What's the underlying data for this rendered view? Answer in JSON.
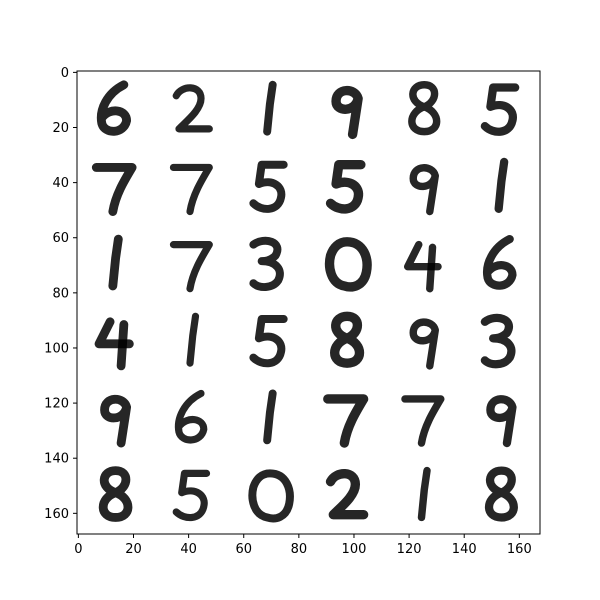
{
  "chart_data": {
    "type": "heatmap",
    "title": "",
    "xlabel": "",
    "ylabel": "",
    "xlim": [
      -0.5,
      167.5
    ],
    "ylim": [
      167.5,
      -0.5
    ],
    "xticks": [
      0,
      20,
      40,
      60,
      80,
      100,
      120,
      140,
      160
    ],
    "yticks": [
      0,
      20,
      40,
      60,
      80,
      100,
      120,
      140,
      160
    ],
    "xtick_labels": [
      "0",
      "20",
      "40",
      "60",
      "80",
      "100",
      "120",
      "140",
      "160"
    ],
    "ytick_labels": [
      "0",
      "20",
      "40",
      "60",
      "80",
      "100",
      "120",
      "140",
      "160"
    ],
    "grid": false,
    "colormap": "gray_r",
    "image_size": [
      168,
      168
    ],
    "tile_grid": {
      "rows": 6,
      "cols": 6,
      "tile_size": 28
    },
    "tiles_depicted_digits": [
      [
        6,
        2,
        1,
        9,
        8,
        5
      ],
      [
        7,
        7,
        5,
        5,
        9,
        1
      ],
      [
        1,
        7,
        3,
        0,
        4,
        6
      ],
      [
        4,
        1,
        5,
        8,
        9,
        3
      ],
      [
        9,
        6,
        1,
        7,
        7,
        9
      ],
      [
        8,
        5,
        0,
        2,
        1,
        8
      ]
    ]
  },
  "style": {
    "ink": "#000000",
    "frame": "#000000",
    "background": "#ffffff"
  }
}
